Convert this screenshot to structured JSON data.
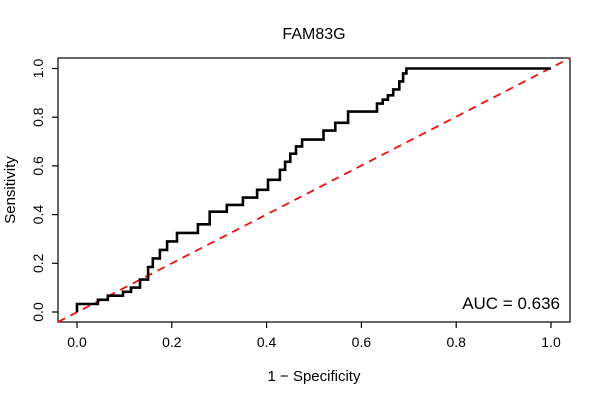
{
  "chart_data": {
    "type": "line",
    "subtype": "roc-step-curve",
    "title": "FAM83G",
    "xlabel": "1 − Specificity",
    "ylabel": "Sensitivity",
    "xlim": [
      0.0,
      1.0
    ],
    "ylim": [
      0.0,
      1.0
    ],
    "x_tick_labels": [
      "0.0",
      "0.2",
      "0.4",
      "0.6",
      "0.8",
      "1.0"
    ],
    "y_tick_labels": [
      "0.0",
      "0.2",
      "0.4",
      "0.6",
      "0.8",
      "1.0"
    ],
    "x_tick_values": [
      0.0,
      0.2,
      0.4,
      0.6,
      0.8,
      1.0
    ],
    "y_tick_values": [
      0.0,
      0.2,
      0.4,
      0.6,
      0.8,
      1.0
    ],
    "grid": false,
    "annotation": "AUC = 0.636",
    "auc_value": 0.636,
    "roc_curve": {
      "color": "#000000",
      "line_width": 2.6,
      "points": [
        [
          0.0,
          0.0
        ],
        [
          0.0,
          0.033
        ],
        [
          0.044,
          0.033
        ],
        [
          0.044,
          0.05
        ],
        [
          0.065,
          0.05
        ],
        [
          0.065,
          0.067
        ],
        [
          0.097,
          0.067
        ],
        [
          0.097,
          0.083
        ],
        [
          0.114,
          0.083
        ],
        [
          0.114,
          0.1
        ],
        [
          0.133,
          0.1
        ],
        [
          0.133,
          0.133
        ],
        [
          0.15,
          0.133
        ],
        [
          0.15,
          0.185
        ],
        [
          0.16,
          0.185
        ],
        [
          0.16,
          0.22
        ],
        [
          0.175,
          0.22
        ],
        [
          0.175,
          0.255
        ],
        [
          0.19,
          0.255
        ],
        [
          0.19,
          0.29
        ],
        [
          0.211,
          0.29
        ],
        [
          0.211,
          0.325
        ],
        [
          0.255,
          0.325
        ],
        [
          0.255,
          0.36
        ],
        [
          0.28,
          0.36
        ],
        [
          0.28,
          0.412
        ],
        [
          0.316,
          0.412
        ],
        [
          0.316,
          0.44
        ],
        [
          0.35,
          0.44
        ],
        [
          0.35,
          0.47
        ],
        [
          0.38,
          0.47
        ],
        [
          0.38,
          0.502
        ],
        [
          0.403,
          0.502
        ],
        [
          0.403,
          0.543
        ],
        [
          0.428,
          0.543
        ],
        [
          0.428,
          0.584
        ],
        [
          0.439,
          0.584
        ],
        [
          0.439,
          0.617
        ],
        [
          0.45,
          0.617
        ],
        [
          0.45,
          0.65
        ],
        [
          0.462,
          0.65
        ],
        [
          0.462,
          0.68
        ],
        [
          0.475,
          0.68
        ],
        [
          0.475,
          0.708
        ],
        [
          0.52,
          0.708
        ],
        [
          0.52,
          0.745
        ],
        [
          0.545,
          0.745
        ],
        [
          0.545,
          0.777
        ],
        [
          0.572,
          0.777
        ],
        [
          0.572,
          0.823
        ],
        [
          0.633,
          0.823
        ],
        [
          0.633,
          0.856
        ],
        [
          0.645,
          0.856
        ],
        [
          0.645,
          0.872
        ],
        [
          0.656,
          0.872
        ],
        [
          0.656,
          0.89
        ],
        [
          0.667,
          0.89
        ],
        [
          0.667,
          0.914
        ],
        [
          0.68,
          0.914
        ],
        [
          0.68,
          0.947
        ],
        [
          0.688,
          0.947
        ],
        [
          0.688,
          0.98
        ],
        [
          0.695,
          0.98
        ],
        [
          0.695,
          1.0
        ],
        [
          1.0,
          1.0
        ]
      ]
    },
    "reference_line": {
      "style": "dashed",
      "color": "#ee1111",
      "line_width": 1.8,
      "from": [
        0.0,
        0.0
      ],
      "to": [
        1.0,
        1.0
      ]
    }
  }
}
